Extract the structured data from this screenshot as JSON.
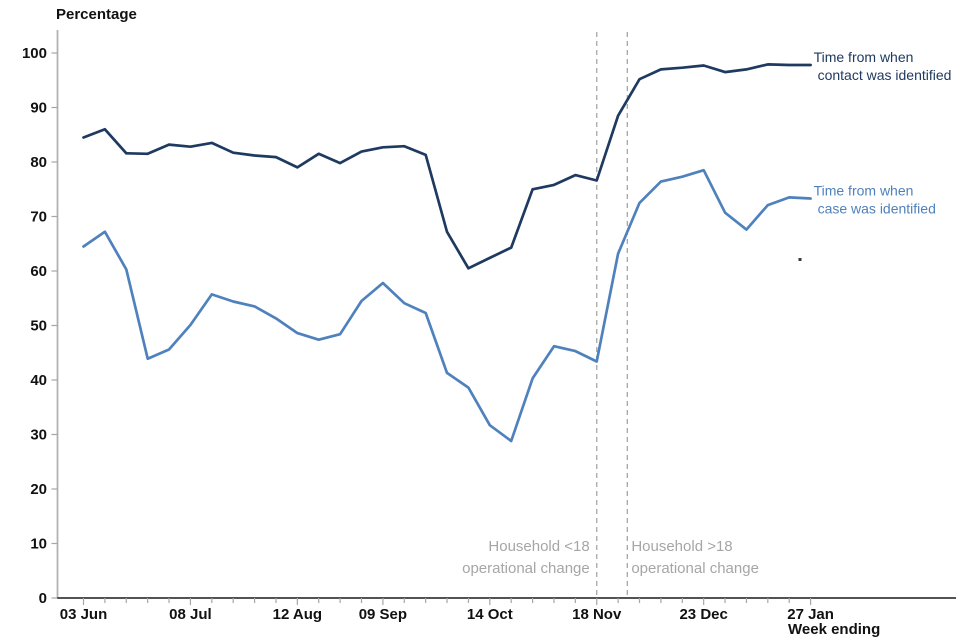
{
  "page": {
    "title": "Percentage",
    "x_axis_title": "Week ending"
  },
  "chart_data": {
    "type": "line",
    "title": "Percentage",
    "xlabel": "Week ending",
    "ylabel": "Percentage",
    "ylim": [
      0,
      100
    ],
    "grid": false,
    "y_ticks": [
      0,
      10,
      20,
      30,
      40,
      50,
      60,
      70,
      80,
      90,
      100
    ],
    "weeks_total": 35,
    "x_tick_labels": [
      {
        "week": 0,
        "label": "03 Jun"
      },
      {
        "week": 5,
        "label": "08 Jul"
      },
      {
        "week": 10,
        "label": "12 Aug"
      },
      {
        "week": 14,
        "label": "09 Sep"
      },
      {
        "week": 19,
        "label": "14 Oct"
      },
      {
        "week": 24,
        "label": "18 Nov"
      },
      {
        "week": 29,
        "label": "23 Dec"
      },
      {
        "week": 34,
        "label": "27 Jan"
      }
    ],
    "series": [
      {
        "name": "Time from when contact was identified",
        "label_lines": [
          "Time from when",
          "contact was identified"
        ],
        "color": "#1f3a60",
        "values": [
          84.5,
          86.0,
          81.6,
          81.5,
          83.2,
          82.8,
          83.5,
          81.7,
          81.2,
          80.9,
          79.0,
          81.5,
          79.8,
          81.9,
          82.7,
          82.9,
          81.3,
          67.2,
          60.5,
          62.4,
          64.3,
          75.0,
          75.8,
          77.6,
          76.6,
          88.5,
          95.2,
          97.0,
          97.3,
          97.7,
          96.5,
          97.0,
          97.9,
          97.8,
          97.8
        ]
      },
      {
        "name": "Time from when case was identified",
        "label_lines": [
          "Time from when",
          "case was identified"
        ],
        "color": "#4f81bd",
        "values": [
          64.5,
          67.2,
          60.3,
          43.9,
          45.6,
          50.1,
          55.7,
          54.4,
          53.5,
          51.3,
          48.6,
          47.4,
          48.4,
          54.5,
          57.8,
          54.1,
          52.3,
          41.3,
          38.6,
          31.7,
          28.8,
          40.3,
          46.2,
          45.3,
          43.4,
          63.2,
          72.5,
          76.4,
          77.3,
          78.5,
          70.7,
          67.6,
          72.1,
          73.5,
          73.3
        ]
      }
    ],
    "events": [
      {
        "week": 24.0,
        "label_lines": [
          "Household <18",
          "operational change"
        ],
        "align": "right"
      },
      {
        "week": 25.43,
        "label_lines": [
          "Household >18",
          "operational change"
        ],
        "align": "left"
      }
    ],
    "colors": {
      "contact_line": "#1f3a60",
      "case_line": "#4f81bd",
      "event_dashed": "#a6a6a6",
      "annotation_text": "#a6a6a6",
      "x_axis": "#1a1a1a",
      "y_axis": "#b3b3b3",
      "tick": "#a6a6a6",
      "label_text": "#111111"
    },
    "legend_position": "right-of-line-end"
  }
}
